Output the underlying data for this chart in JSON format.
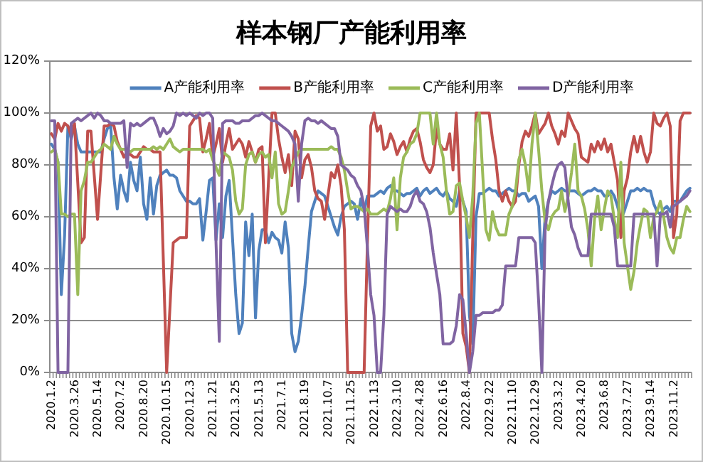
{
  "chart_data": {
    "type": "line",
    "title": "样本钢厂产能利用率",
    "categories": [
      "2020.1.2",
      null,
      null,
      null,
      null,
      null,
      null,
      "2020.3.26",
      null,
      null,
      null,
      null,
      null,
      null,
      "2020.5.14",
      null,
      null,
      null,
      null,
      null,
      null,
      "2020.7.2",
      null,
      null,
      null,
      null,
      null,
      null,
      "2020.8.20",
      null,
      null,
      null,
      null,
      null,
      null,
      "2020.10.15",
      null,
      null,
      null,
      null,
      null,
      null,
      "2020.12.3",
      null,
      null,
      null,
      null,
      null,
      null,
      "2021.1.21",
      null,
      null,
      null,
      null,
      null,
      null,
      "2021.3.25",
      null,
      null,
      null,
      null,
      null,
      null,
      "2021.5.13",
      null,
      null,
      null,
      null,
      null,
      null,
      "2021.7.1",
      null,
      null,
      null,
      null,
      null,
      null,
      "2021.8.19",
      null,
      null,
      null,
      null,
      null,
      null,
      "2021.10.7",
      null,
      null,
      null,
      null,
      null,
      null,
      "2021.11.25",
      null,
      null,
      null,
      null,
      null,
      null,
      "2022.1.13",
      null,
      null,
      null,
      null,
      null,
      null,
      "2022.3.10",
      null,
      null,
      null,
      null,
      null,
      null,
      "2022.4.28",
      null,
      null,
      null,
      null,
      null,
      null,
      "2022.6.16",
      null,
      null,
      null,
      null,
      null,
      null,
      "2022.8.4",
      null,
      null,
      null,
      null,
      null,
      null,
      "2022.9.22",
      null,
      null,
      null,
      null,
      null,
      null,
      "2022.11.10",
      null,
      null,
      null,
      null,
      null,
      null,
      "2022.12.29",
      null,
      null,
      null,
      null,
      null,
      null,
      "2023.3.2",
      null,
      null,
      null,
      null,
      null,
      null,
      "2023.4.20",
      null,
      null,
      null,
      null,
      null,
      null,
      "2023.6.8",
      null,
      null,
      null,
      null,
      null,
      null,
      "2023.7.27",
      null,
      null,
      null,
      null,
      null,
      null,
      "2023.9.14",
      null,
      null,
      null,
      null,
      null,
      null,
      "2023.11.2",
      null,
      null,
      null,
      null,
      null
    ],
    "series": [
      {
        "name": "A产能利用率",
        "color": "#4f81bd",
        "values": [
          88,
          86,
          81,
          30,
          53,
          95,
          90,
          95,
          88,
          85,
          85,
          85,
          85,
          85,
          85,
          85,
          90,
          94,
          95,
          75,
          63,
          76,
          70,
          66,
          81,
          74,
          70,
          83,
          65,
          59,
          75,
          61,
          72,
          76,
          77,
          78,
          76,
          76,
          75,
          70,
          68,
          66,
          66,
          65,
          65,
          67,
          51,
          62,
          74,
          75,
          51,
          65,
          52,
          68,
          74,
          52,
          30,
          15,
          19,
          58,
          45,
          61,
          21,
          47,
          55,
          55,
          50,
          54,
          52,
          51,
          46,
          58,
          48,
          15,
          8,
          12,
          22,
          33,
          48,
          62,
          66,
          70,
          69,
          68,
          64,
          60,
          56,
          53,
          60,
          64,
          65,
          66,
          65,
          59,
          67,
          62,
          68,
          68,
          68,
          69,
          70,
          69,
          71,
          72,
          70,
          70,
          69,
          68,
          69,
          69,
          70,
          71,
          68,
          70,
          71,
          69,
          70,
          71,
          69,
          68,
          70,
          67,
          66,
          64,
          70,
          66,
          62,
          22,
          11,
          60,
          69,
          69,
          70,
          71,
          70,
          70,
          68,
          69,
          70,
          71,
          70,
          70,
          68,
          69,
          69,
          66,
          67,
          68,
          64,
          40,
          60,
          66,
          70,
          69,
          70,
          71,
          70,
          70,
          70,
          70,
          69,
          68,
          69,
          70,
          70,
          71,
          70,
          70,
          68,
          68,
          70,
          68,
          64,
          59,
          62,
          66,
          70,
          70,
          71,
          70,
          71,
          70,
          70,
          65,
          62,
          61,
          63,
          64,
          62,
          66,
          66,
          66,
          68,
          70,
          71
        ]
      },
      {
        "name": "B产能利用率",
        "color": "#c0504d",
        "values": [
          92,
          90,
          96,
          93,
          96,
          95,
          91,
          96,
          73,
          50,
          52,
          93,
          93,
          76,
          59,
          77,
          95,
          95,
          96,
          95,
          89,
          86,
          83,
          85,
          84,
          83,
          83,
          85,
          87,
          86,
          86,
          85,
          85,
          85,
          43,
          0,
          25,
          50,
          51,
          52,
          52,
          52,
          95,
          97,
          99,
          98,
          85,
          90,
          96,
          83,
          88,
          94,
          81,
          88,
          94,
          86,
          88,
          90,
          88,
          83,
          89,
          85,
          81,
          86,
          87,
          50,
          75,
          100,
          100,
          90,
          83,
          77,
          84,
          72,
          93,
          90,
          75,
          82,
          84,
          79,
          70,
          67,
          66,
          59,
          68,
          77,
          75,
          80,
          72,
          55,
          0,
          0,
          0,
          0,
          0,
          0,
          50,
          95,
          100,
          93,
          95,
          86,
          87,
          92,
          89,
          84,
          87,
          89,
          85,
          90,
          93,
          94,
          89,
          82,
          79,
          77,
          80,
          94,
          88,
          86,
          86,
          92,
          78,
          100,
          72,
          15,
          10,
          0,
          52,
          100,
          100,
          100,
          100,
          100,
          90,
          82,
          70,
          66,
          70,
          66,
          64,
          66,
          80,
          89,
          93,
          91,
          95,
          100,
          92,
          94,
          96,
          100,
          95,
          92,
          88,
          93,
          91,
          100,
          97,
          94,
          92,
          83,
          82,
          81,
          88,
          85,
          89,
          86,
          90,
          85,
          88,
          81,
          74,
          52,
          70,
          75,
          85,
          91,
          85,
          91,
          85,
          81,
          85,
          100,
          96,
          95,
          98,
          100,
          95,
          52,
          61,
          97,
          100,
          100,
          100
        ]
      },
      {
        "name": "C产能利用率",
        "color": "#9bbb59",
        "values": [
          85,
          86,
          81,
          61,
          61,
          60,
          61,
          61,
          30,
          70,
          74,
          81,
          81,
          83,
          85,
          86,
          88,
          87,
          86,
          91,
          88,
          86,
          86,
          86,
          85,
          86,
          86,
          86,
          86,
          86,
          86,
          87,
          86,
          87,
          86,
          88,
          90,
          87,
          86,
          85,
          86,
          86,
          86,
          86,
          86,
          86,
          86,
          85,
          86,
          82,
          79,
          76,
          85,
          84,
          83,
          78,
          66,
          61,
          63,
          80,
          84,
          85,
          81,
          84,
          85,
          83,
          84,
          75,
          85,
          65,
          61,
          62,
          70,
          79,
          82,
          85,
          86,
          86,
          86,
          86,
          86,
          86,
          86,
          86,
          86,
          87,
          86,
          86,
          83,
          78,
          70,
          63,
          64,
          64,
          63,
          62,
          63,
          61,
          61,
          61,
          62,
          63,
          62,
          67,
          75,
          55,
          75,
          83,
          85,
          88,
          89,
          92,
          100,
          100,
          100,
          100,
          88,
          100,
          88,
          83,
          70,
          61,
          62,
          72,
          73,
          66,
          60,
          52,
          68,
          96,
          100,
          77,
          55,
          51,
          62,
          56,
          53,
          53,
          53,
          61,
          64,
          70,
          82,
          86,
          80,
          70,
          88,
          100,
          86,
          70,
          58,
          55,
          60,
          62,
          63,
          70,
          62,
          68,
          77,
          88,
          70,
          68,
          63,
          55,
          41,
          59,
          68,
          55,
          63,
          70,
          68,
          59,
          52,
          81,
          50,
          41,
          32,
          39,
          50,
          57,
          63,
          62,
          52,
          60,
          62,
          66,
          60,
          52,
          48,
          46,
          52,
          52,
          59,
          64,
          62
        ]
      },
      {
        "name": "D产能利用率",
        "color": "#8064a2",
        "values": [
          97,
          97,
          0,
          0,
          0,
          0,
          96,
          97,
          98,
          97,
          98,
          99,
          100,
          98,
          100,
          99,
          97,
          97,
          96,
          96,
          96,
          96,
          97,
          79,
          96,
          95,
          96,
          95,
          96,
          97,
          98,
          98,
          95,
          91,
          94,
          92,
          93,
          95,
          100,
          99,
          100,
          99,
          100,
          99,
          98,
          100,
          99,
          100,
          100,
          98,
          50,
          12,
          96,
          97,
          97,
          97,
          96,
          96,
          97,
          97,
          97,
          98,
          99,
          99,
          100,
          99,
          98,
          97,
          97,
          96,
          95,
          94,
          93,
          91,
          88,
          66,
          88,
          97,
          98,
          97,
          97,
          96,
          97,
          96,
          95,
          94,
          94,
          91,
          80,
          79,
          78,
          76,
          75,
          72,
          70,
          64,
          48,
          30,
          22,
          0,
          0,
          22,
          61,
          64,
          63,
          62,
          63,
          62,
          62,
          64,
          68,
          70,
          66,
          65,
          62,
          56,
          46,
          38,
          30,
          11,
          11,
          11,
          12,
          18,
          30,
          28,
          15,
          0,
          8,
          22,
          22,
          23,
          23,
          23,
          23,
          24,
          24,
          26,
          41,
          41,
          41,
          41,
          52,
          52,
          52,
          52,
          52,
          50,
          28,
          0,
          55,
          66,
          72,
          77,
          80,
          81,
          79,
          66,
          56,
          53,
          48,
          45,
          45,
          45,
          61,
          61,
          61,
          61,
          61,
          61,
          61,
          56,
          41,
          41,
          41,
          41,
          41,
          61,
          61,
          61,
          61,
          61,
          61,
          61,
          41,
          61,
          61,
          62,
          56,
          64,
          65,
          66,
          67,
          68,
          70
        ]
      }
    ],
    "ylim": [
      0,
      120
    ],
    "yticks": [
      {
        "value": 0,
        "label": "0%"
      },
      {
        "value": 20,
        "label": "20%"
      },
      {
        "value": 40,
        "label": "40%"
      },
      {
        "value": 60,
        "label": "60%"
      },
      {
        "value": 80,
        "label": "80%"
      },
      {
        "value": 100,
        "label": "100%"
      },
      {
        "value": 120,
        "label": "120%"
      }
    ],
    "grid": "y",
    "legend": "top"
  }
}
